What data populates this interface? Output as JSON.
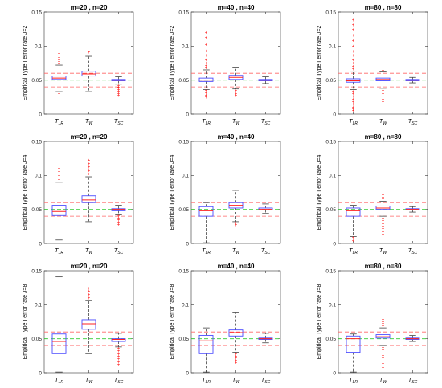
{
  "chart_data": [
    {
      "type": "box",
      "title": "m=20 , n=20",
      "ylabel": "Empirical Type I error rate J=2",
      "ylim": [
        0,
        0.15
      ],
      "yticks": [
        0,
        0.05,
        0.1,
        0.15
      ],
      "yticklabels": [
        "0",
        "0.05",
        "0.1",
        "0.15"
      ],
      "categories": [
        "T_LR",
        "T_W",
        "T_SC"
      ],
      "reference_lines": [
        0.04,
        0.05,
        0.06
      ],
      "boxes": [
        {
          "q1": 0.051,
          "median": 0.053,
          "q3": 0.056,
          "whisker_low": 0.033,
          "whisker_high": 0.072,
          "outliers_low": [
            0.032,
            0.03
          ],
          "outliers_high": [
            0.074,
            0.077,
            0.08,
            0.083,
            0.086,
            0.089,
            0.092
          ]
        },
        {
          "q1": 0.056,
          "median": 0.059,
          "q3": 0.063,
          "whisker_low": 0.033,
          "whisker_high": 0.085,
          "outliers_low": [],
          "outliers_high": [
            0.091
          ]
        },
        {
          "q1": 0.049,
          "median": 0.05,
          "q3": 0.051,
          "whisker_low": 0.044,
          "whisker_high": 0.055,
          "outliers_low": [
            0.042,
            0.039,
            0.036,
            0.033,
            0.03,
            0.027
          ],
          "outliers_high": []
        }
      ]
    },
    {
      "type": "box",
      "title": "m=40 , n=40",
      "ylabel": "Empirical Type I error rate J=2",
      "ylim": [
        0,
        0.15
      ],
      "yticks": [
        0,
        0.05,
        0.1,
        0.15
      ],
      "yticklabels": [
        "0",
        "0.05",
        "0.1",
        "0.15"
      ],
      "categories": [
        "T_LR",
        "T_W",
        "T_SC"
      ],
      "reference_lines": [
        0.04,
        0.05,
        0.06
      ],
      "boxes": [
        {
          "q1": 0.048,
          "median": 0.05,
          "q3": 0.053,
          "whisker_low": 0.036,
          "whisker_high": 0.065,
          "outliers_low": [
            0.034,
            0.031,
            0.028,
            0.025
          ],
          "outliers_high": [
            0.068,
            0.071,
            0.075,
            0.08,
            0.086,
            0.093,
            0.102,
            0.112,
            0.12
          ]
        },
        {
          "q1": 0.051,
          "median": 0.054,
          "q3": 0.057,
          "whisker_low": 0.037,
          "whisker_high": 0.068,
          "outliers_low": [
            0.034,
            0.03,
            0.027
          ],
          "outliers_high": []
        },
        {
          "q1": 0.049,
          "median": 0.05,
          "q3": 0.051,
          "whisker_low": 0.045,
          "whisker_high": 0.055,
          "outliers_low": [],
          "outliers_high": []
        }
      ]
    },
    {
      "type": "box",
      "title": "m=80 , n=80",
      "ylabel": "Empirical Type I error rate J=2",
      "ylim": [
        0,
        0.15
      ],
      "yticks": [
        0,
        0.05,
        0.1,
        0.15
      ],
      "yticklabels": [
        "0",
        "0.05",
        "0.1",
        "0.15"
      ],
      "categories": [
        "T_LR",
        "T_W",
        "T_SC"
      ],
      "reference_lines": [
        0.04,
        0.05,
        0.06
      ],
      "boxes": [
        {
          "q1": 0.047,
          "median": 0.049,
          "q3": 0.052,
          "whisker_low": 0.036,
          "whisker_high": 0.063,
          "outliers_low": [
            0.033,
            0.03,
            0.026,
            0.022,
            0.018,
            0.014,
            0.01,
            0.007,
            0.005
          ],
          "outliers_high": [
            0.066,
            0.07,
            0.075,
            0.08,
            0.086,
            0.092,
            0.1,
            0.108,
            0.116,
            0.124,
            0.131,
            0.138
          ]
        },
        {
          "q1": 0.049,
          "median": 0.051,
          "q3": 0.053,
          "whisker_low": 0.038,
          "whisker_high": 0.062,
          "outliers_low": [
            0.034,
            0.03,
            0.026,
            0.022,
            0.018,
            0.014
          ],
          "outliers_high": [
            0.064
          ]
        },
        {
          "q1": 0.049,
          "median": 0.05,
          "q3": 0.051,
          "whisker_low": 0.046,
          "whisker_high": 0.054,
          "outliers_low": [],
          "outliers_high": []
        }
      ]
    },
    {
      "type": "box",
      "title": "m=20 , n=20",
      "ylabel": "Empirical Type I error rate J=4",
      "ylim": [
        0,
        0.15
      ],
      "yticks": [
        0,
        0.05,
        0.1,
        0.15
      ],
      "yticklabels": [
        "0",
        "0.05",
        "0.1",
        "0.15"
      ],
      "categories": [
        "T_LR",
        "T_W",
        "T_SC"
      ],
      "reference_lines": [
        0.04,
        0.05,
        0.06
      ],
      "boxes": [
        {
          "q1": 0.041,
          "median": 0.047,
          "q3": 0.056,
          "whisker_low": 0.005,
          "whisker_high": 0.09,
          "outliers_low": [],
          "outliers_high": [
            0.094,
            0.099,
            0.105,
            0.11
          ]
        },
        {
          "q1": 0.06,
          "median": 0.064,
          "q3": 0.07,
          "whisker_low": 0.032,
          "whisker_high": 0.098,
          "outliers_low": [],
          "outliers_high": [
            0.102,
            0.107,
            0.112,
            0.117,
            0.122
          ]
        },
        {
          "q1": 0.048,
          "median": 0.05,
          "q3": 0.051,
          "whisker_low": 0.042,
          "whisker_high": 0.056,
          "outliers_low": [
            0.04,
            0.037,
            0.034,
            0.031,
            0.028
          ],
          "outliers_high": []
        }
      ]
    },
    {
      "type": "box",
      "title": "m=40 , n=40",
      "ylabel": "Empirical Type I error rate J=4",
      "ylim": [
        0,
        0.15
      ],
      "yticks": [
        0,
        0.05,
        0.1,
        0.15
      ],
      "yticklabels": [
        "0",
        "0.05",
        "0.1",
        "0.15"
      ],
      "categories": [
        "T_LR",
        "T_W",
        "T_SC"
      ],
      "reference_lines": [
        0.04,
        0.05,
        0.06
      ],
      "boxes": [
        {
          "q1": 0.04,
          "median": 0.048,
          "q3": 0.054,
          "whisker_low": 0.001,
          "whisker_high": 0.06,
          "outliers_low": [],
          "outliers_high": []
        },
        {
          "q1": 0.052,
          "median": 0.056,
          "q3": 0.06,
          "whisker_low": 0.032,
          "whisker_high": 0.078,
          "outliers_low": [
            0.03,
            0.027
          ],
          "outliers_high": []
        },
        {
          "q1": 0.049,
          "median": 0.05,
          "q3": 0.052,
          "whisker_low": 0.044,
          "whisker_high": 0.058,
          "outliers_low": [],
          "outliers_high": []
        }
      ]
    },
    {
      "type": "box",
      "title": "m=80 , n=80",
      "ylabel": "Empirical Type I error rate J=4",
      "ylim": [
        0,
        0.15
      ],
      "yticks": [
        0,
        0.05,
        0.1,
        0.15
      ],
      "yticklabels": [
        "0",
        "0.05",
        "0.1",
        "0.15"
      ],
      "categories": [
        "T_LR",
        "T_W",
        "T_SC"
      ],
      "reference_lines": [
        0.04,
        0.05,
        0.06
      ],
      "boxes": [
        {
          "q1": 0.04,
          "median": 0.048,
          "q3": 0.052,
          "whisker_low": 0.01,
          "whisker_high": 0.056,
          "outliers_low": [
            0.008,
            0.004
          ],
          "outliers_high": []
        },
        {
          "q1": 0.05,
          "median": 0.052,
          "q3": 0.055,
          "whisker_low": 0.04,
          "whisker_high": 0.062,
          "outliers_low": [
            0.037,
            0.033,
            0.029,
            0.025,
            0.021,
            0.017,
            0.013
          ],
          "outliers_high": [
            0.065,
            0.068,
            0.071
          ]
        },
        {
          "q1": 0.049,
          "median": 0.05,
          "q3": 0.051,
          "whisker_low": 0.046,
          "whisker_high": 0.054,
          "outliers_low": [],
          "outliers_high": []
        }
      ]
    },
    {
      "type": "box",
      "title": "m=20 , n=20",
      "ylabel": "Empirical Type I error rate J=8",
      "ylim": [
        0,
        0.15
      ],
      "yticks": [
        0,
        0.05,
        0.1,
        0.15
      ],
      "yticklabels": [
        "0",
        "0.05",
        "0.1",
        "0.15"
      ],
      "categories": [
        "T_LR",
        "T_W",
        "T_SC"
      ],
      "reference_lines": [
        0.04,
        0.05,
        0.06
      ],
      "boxes": [
        {
          "q1": 0.028,
          "median": 0.046,
          "q3": 0.057,
          "whisker_low": 0.001,
          "whisker_high": 0.141,
          "outliers_low": [],
          "outliers_high": []
        },
        {
          "q1": 0.064,
          "median": 0.072,
          "q3": 0.078,
          "whisker_low": 0.028,
          "whisker_high": 0.106,
          "outliers_low": [],
          "outliers_high": [
            0.11,
            0.115,
            0.12,
            0.124
          ]
        },
        {
          "q1": 0.046,
          "median": 0.049,
          "q3": 0.05,
          "whisker_low": 0.038,
          "whisker_high": 0.058,
          "outliers_low": [
            0.036,
            0.032,
            0.028,
            0.024,
            0.02,
            0.016,
            0.012
          ],
          "outliers_high": []
        }
      ]
    },
    {
      "type": "box",
      "title": "m=40 , n=40",
      "ylabel": "Empirical Type I error rate J=8",
      "ylim": [
        0,
        0.15
      ],
      "yticks": [
        0,
        0.05,
        0.1,
        0.15
      ],
      "yticklabels": [
        "0",
        "0.05",
        "0.1",
        "0.15"
      ],
      "categories": [
        "T_LR",
        "T_W",
        "T_SC"
      ],
      "reference_lines": [
        0.04,
        0.05,
        0.06
      ],
      "boxes": [
        {
          "q1": 0.028,
          "median": 0.047,
          "q3": 0.055,
          "whisker_low": 0.001,
          "whisker_high": 0.066,
          "outliers_low": [],
          "outliers_high": []
        },
        {
          "q1": 0.054,
          "median": 0.059,
          "q3": 0.063,
          "whisker_low": 0.03,
          "whisker_high": 0.088,
          "outliers_low": [
            0.027,
            0.024,
            0.021,
            0.018,
            0.015
          ],
          "outliers_high": []
        },
        {
          "q1": 0.049,
          "median": 0.05,
          "q3": 0.051,
          "whisker_low": 0.044,
          "whisker_high": 0.058,
          "outliers_low": [],
          "outliers_high": []
        }
      ]
    },
    {
      "type": "box",
      "title": "m=80 , n=80",
      "ylabel": "Empirical Type I error rate J=8",
      "ylim": [
        0,
        0.15
      ],
      "yticks": [
        0,
        0.05,
        0.1,
        0.15
      ],
      "yticklabels": [
        "0",
        "0.05",
        "0.1",
        "0.15"
      ],
      "categories": [
        "T_LR",
        "T_W",
        "T_SC"
      ],
      "reference_lines": [
        0.04,
        0.05,
        0.06
      ],
      "boxes": [
        {
          "q1": 0.03,
          "median": 0.05,
          "q3": 0.054,
          "whisker_low": 0.001,
          "whisker_high": 0.057,
          "outliers_low": [],
          "outliers_high": []
        },
        {
          "q1": 0.051,
          "median": 0.053,
          "q3": 0.056,
          "whisker_low": 0.04,
          "whisker_high": 0.066,
          "outliers_low": [
            0.037,
            0.033,
            0.029,
            0.025,
            0.021,
            0.017,
            0.013,
            0.01,
            0.007
          ],
          "outliers_high": [
            0.069,
            0.072,
            0.075,
            0.078
          ]
        },
        {
          "q1": 0.049,
          "median": 0.05,
          "q3": 0.051,
          "whisker_low": 0.046,
          "whisker_high": 0.055,
          "outliers_low": [],
          "outliers_high": []
        }
      ]
    }
  ],
  "style": {
    "box_color": "#4a4aff",
    "median_color": "#ff2222",
    "whisker_color": "#444444",
    "outlier_color": "#ff0000",
    "ref_outer_color": "#ff6666",
    "ref_center_color": "#33cc33"
  }
}
